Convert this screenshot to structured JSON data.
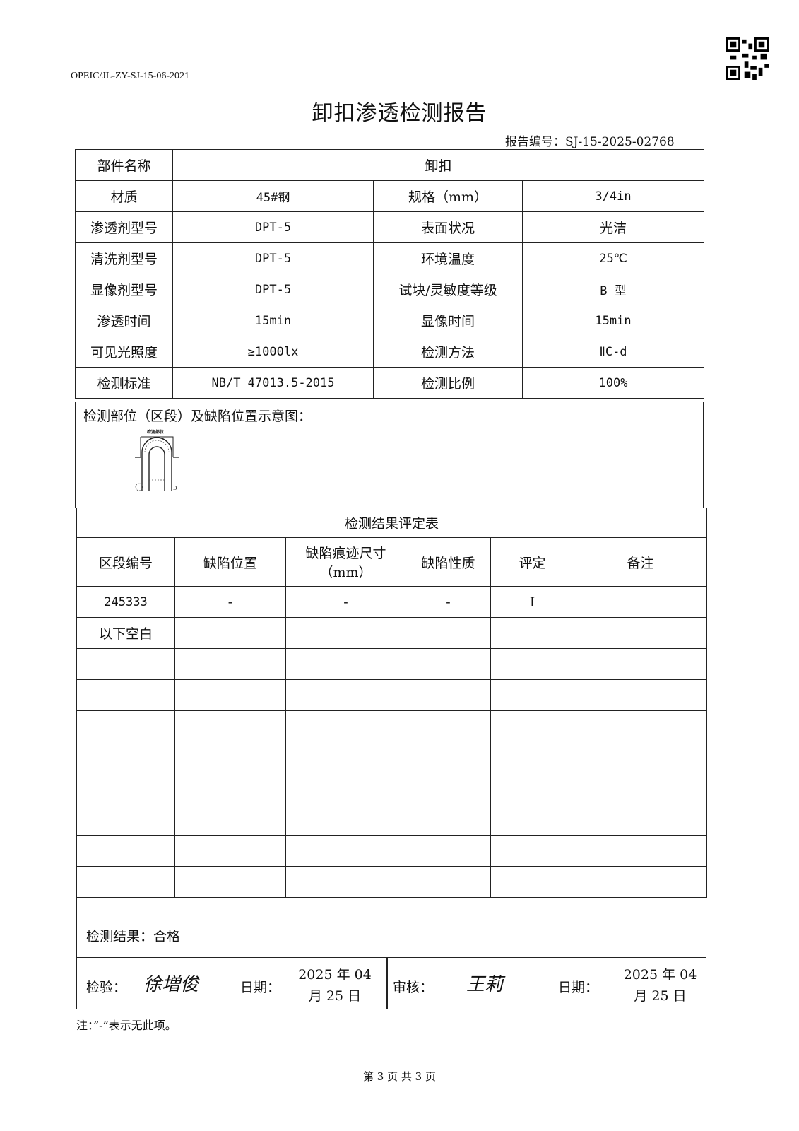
{
  "header": {
    "form_code": "OPEIC/JL-ZY-SJ-15-06-2021",
    "title": "卸扣渗透检测报告",
    "report_no": "报告编号：SJ-15-2025-02768",
    "qr_icon": "qr-code-icon"
  },
  "info": {
    "part_name_label": "部件名称",
    "part_name": "卸扣",
    "rows": [
      {
        "l1": "材质",
        "v1": "45#钢",
        "l2": "规格（mm）",
        "v2": "3/4in"
      },
      {
        "l1": "渗透剂型号",
        "v1": "DPT-5",
        "l2": "表面状况",
        "v2": "光洁"
      },
      {
        "l1": "清洗剂型号",
        "v1": "DPT-5",
        "l2": "环境温度",
        "v2": "25℃"
      },
      {
        "l1": "显像剂型号",
        "v1": "DPT-5",
        "l2": "试块/灵敏度等级",
        "v2": "B 型"
      },
      {
        "l1": "渗透时间",
        "v1": "15min",
        "l2": "显像时间",
        "v2": "15min"
      },
      {
        "l1": "可见光照度",
        "v1": "≥1000lx",
        "l2": "检测方法",
        "v2": "ⅡC-d"
      },
      {
        "l1": "检测标准",
        "v1": "NB/T 47013.5-2015",
        "l2": "检测比例",
        "v2": "100%"
      }
    ]
  },
  "diagram": {
    "label": "检测部位（区段）及缺陷位置示意图：",
    "part_label": "检测部位",
    "d_label": "D"
  },
  "results": {
    "title": "检测结果评定表",
    "headers": [
      "区段编号",
      "缺陷位置",
      "缺陷痕迹尺寸（mm）",
      "缺陷性质",
      "评定",
      "备注"
    ],
    "rows": [
      [
        "245333",
        "-",
        "-",
        "-",
        "I",
        ""
      ],
      [
        "以下空白",
        "",
        "",
        "",
        "",
        ""
      ]
    ]
  },
  "conclusion": "检测结果：合格",
  "signoff": {
    "inspector_label": "检验：",
    "inspector_signature": "徐増俊",
    "date_label": "日期：",
    "inspector_date": "2025 年 04 月 25 日",
    "reviewer_label": "审核：",
    "reviewer_signature": "王莉",
    "reviewer_date": "2025 年 04 月 25 日"
  },
  "note": "注：”-”表示无此项。",
  "page": "第 3 页 共 3 页"
}
